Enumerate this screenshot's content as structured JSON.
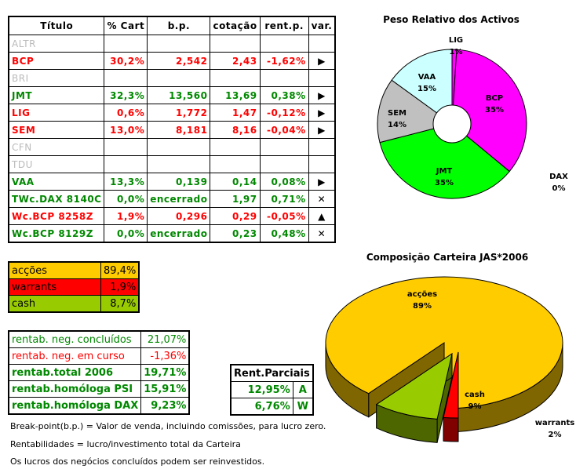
{
  "table": {
    "headers": [
      "Título",
      "% Cart",
      "b.p.",
      "cotação",
      "rent.p.",
      "var."
    ],
    "rows": [
      {
        "name": "ALTR",
        "style": "gry",
        "cart": "",
        "bp": "",
        "cot": "",
        "rent": "",
        "var": ""
      },
      {
        "name": "BCP",
        "style": "red",
        "cart": "30,2%",
        "bp": "2,542",
        "cot": "2,43",
        "rent": "-1,62%",
        "var": "▶"
      },
      {
        "name": "BRI",
        "style": "gry",
        "cart": "",
        "bp": "",
        "cot": "",
        "rent": "",
        "var": ""
      },
      {
        "name": "JMT",
        "style": "grn",
        "cart": "32,3%",
        "bp": "13,560",
        "cot": "13,69",
        "rent": "0,38%",
        "var": "▶"
      },
      {
        "name": "LIG",
        "style": "red",
        "cart": "0,6%",
        "bp": "1,772",
        "cot": "1,47",
        "rent": "-0,12%",
        "var": "▶"
      },
      {
        "name": "SEM",
        "style": "red",
        "cart": "13,0%",
        "bp": "8,181",
        "cot": "8,16",
        "rent": "-0,04%",
        "var": "▶"
      },
      {
        "name": "CFN",
        "style": "gry",
        "cart": "",
        "bp": "",
        "cot": "",
        "rent": "",
        "var": ""
      },
      {
        "name": "TDU",
        "style": "gry",
        "cart": "",
        "bp": "",
        "cot": "",
        "rent": "",
        "var": ""
      },
      {
        "name": "VAA",
        "style": "grn",
        "cart": "13,3%",
        "bp": "0,139",
        "cot": "0,14",
        "rent": "0,08%",
        "var": "▶"
      },
      {
        "name": "TWc.DAX 8140C",
        "style": "grn",
        "cart": "0,0%",
        "bp": "encerrado",
        "cot": "1,97",
        "rent": "0,71%",
        "var": "✕"
      },
      {
        "name": "Wc.BCP 8258Z",
        "style": "red",
        "cart": "1,9%",
        "bp": "0,296",
        "cot": "0,29",
        "rent": "-0,05%",
        "var": "▲"
      },
      {
        "name": "Wc.BCP 8129Z",
        "style": "grn",
        "cart": "0,0%",
        "bp": "encerrado",
        "cot": "0,23",
        "rent": "0,48%",
        "var": "✕"
      }
    ]
  },
  "mix": [
    {
      "label": "acções",
      "value": "89,4%",
      "color": "#ffcc00"
    },
    {
      "label": "warrants",
      "value": "1,9%",
      "color": "#ff0000"
    },
    {
      "label": "cash",
      "value": "8,7%",
      "color": "#99cc00"
    }
  ],
  "rent": [
    {
      "label": "rentab. neg. concluídos",
      "value": "21,07%",
      "color": "#080",
      "bold": false
    },
    {
      "label": "rentab. neg. em curso",
      "value": "-1,36%",
      "color": "#f00",
      "bold": false
    },
    {
      "label": "rentab.total 2006",
      "value": "19,71%",
      "color": "#080",
      "bold": true
    },
    {
      "label": "rentab.homóloga PSI",
      "value": "15,91%",
      "color": "#080",
      "bold": true
    },
    {
      "label": "rentab.homóloga DAX",
      "value": "9,23%",
      "color": "#080",
      "bold": true
    }
  ],
  "parciais": {
    "title": "Rent.Parciais",
    "rows": [
      {
        "value": "12,95%",
        "code": "A"
      },
      {
        "value": "6,76%",
        "code": "W"
      }
    ]
  },
  "notes": [
    "Break-point(b.p.) = Valor de venda, incluindo comissões, para lucro zero.",
    "Rentabilidades = lucro/investimento total da Carteira",
    "Os lucros dos negócios concluídos podem ser reinvestidos."
  ],
  "chart_data": [
    {
      "type": "pie",
      "title": "Peso Relativo dos Activos",
      "donut": true,
      "slices": [
        {
          "label": "LIG",
          "value": 1,
          "text": "1%",
          "color": "#ff00ff"
        },
        {
          "label": "BCP",
          "value": 35,
          "text": "35%",
          "color": "#ff00ff"
        },
        {
          "label": "JMT",
          "value": 35,
          "text": "35%",
          "color": "#00ff00"
        },
        {
          "label": "SEM",
          "value": 14,
          "text": "14%",
          "color": "#c0c0c0"
        },
        {
          "label": "VAA",
          "value": 15,
          "text": "15%",
          "color": "#ccffff"
        },
        {
          "label": "DAX",
          "value": 0,
          "text": "0%",
          "color": "#ffffff"
        }
      ]
    },
    {
      "type": "pie",
      "title": "Composição Carteira JAS*2006",
      "3d": true,
      "slices": [
        {
          "label": "acções",
          "value": 89,
          "text": "89%",
          "color": "#ffcc00",
          "side": "#806600"
        },
        {
          "label": "cash",
          "value": 9,
          "text": "9%",
          "color": "#99cc00",
          "side": "#4d6600"
        },
        {
          "label": "warrants",
          "value": 2,
          "text": "2%",
          "color": "#ff0000",
          "side": "#800000"
        }
      ]
    }
  ]
}
